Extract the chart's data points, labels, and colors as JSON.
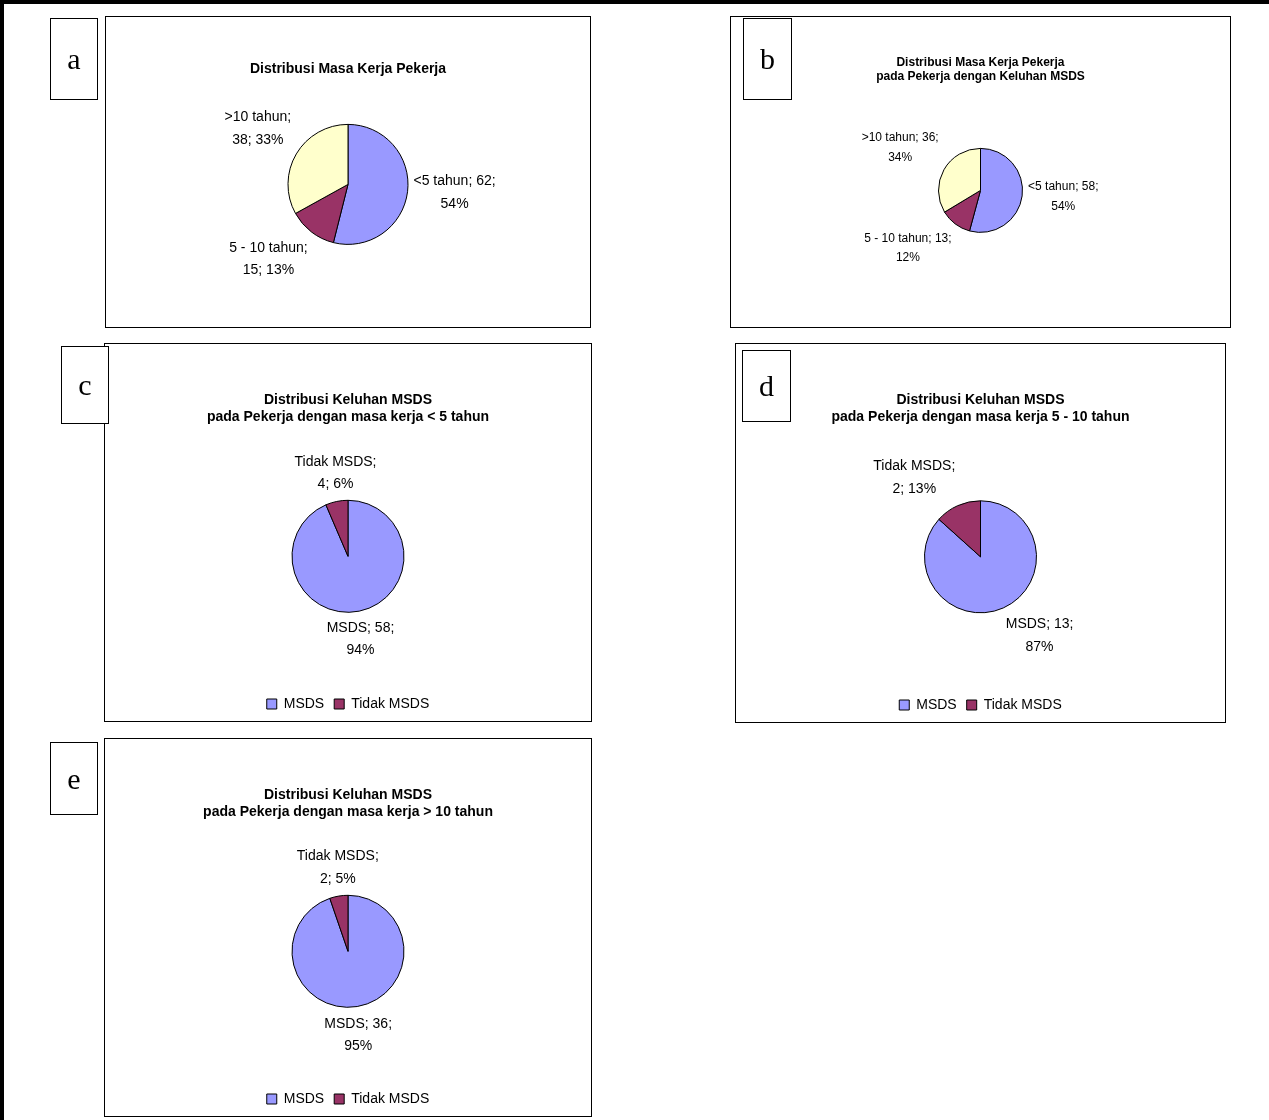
{
  "chart_data": [
    {
      "type": "pie",
      "title": "Distribusi Masa Kerja Pekerja",
      "annotations": [
        "a"
      ],
      "categories": [
        "<5 tahun",
        "5 - 10 tahun",
        ">10 tahun"
      ],
      "values": [
        62,
        15,
        38
      ],
      "colors": [
        "#9999ff",
        "#993366",
        "#ffffcc"
      ],
      "value_labels": [
        "; 62;\n54%",
        ";\n15; 13%",
        ";\n38; 33%"
      ]
    },
    {
      "type": "pie",
      "title": "Distribusi Masa Kerja Pekerja\npada Pekerja dengan Keluhan MSDS",
      "annotations": [
        "b"
      ],
      "categories": [
        "<5 tahun",
        "5 - 10 tahun",
        ">10 tahun"
      ],
      "values": [
        58,
        13,
        36
      ],
      "colors": [
        "#9999ff",
        "#993366",
        "#ffffcc"
      ],
      "value_labels": [
        "; 58;\n54%",
        "; 13;\n12%",
        "; 36;\n34%"
      ]
    },
    {
      "type": "pie",
      "title": "Distribusi Keluhan MSDS\npada Pekerja dengan masa kerja < 5 tahun",
      "annotations": [
        "c"
      ],
      "categories": [
        "MSDS",
        "Tidak MSDS"
      ],
      "values": [
        58,
        4
      ],
      "colors": [
        "#9999ff",
        "#993366"
      ],
      "value_labels": [
        "; 58;\n94%",
        ";\n4; 6%"
      ],
      "legend": "bottom"
    },
    {
      "type": "pie",
      "title": "Distribusi Keluhan MSDS\npada Pekerja dengan masa kerja 5 - 10 tahun",
      "annotations": [
        "d"
      ],
      "categories": [
        "MSDS",
        "Tidak MSDS"
      ],
      "values": [
        13,
        2
      ],
      "colors": [
        "#9999ff",
        "#993366"
      ],
      "value_labels": [
        "; 13;\n87%",
        ";\n2; 13%"
      ],
      "legend": "bottom"
    },
    {
      "type": "pie",
      "title": "Distribusi Keluhan MSDS\npada Pekerja dengan masa kerja > 10 tahun",
      "annotations": [
        "e"
      ],
      "categories": [
        "MSDS",
        "Tidak MSDS"
      ],
      "values": [
        36,
        2
      ],
      "colors": [
        "#9999ff",
        "#993366"
      ],
      "value_labels": [
        "; 36;\n95%",
        ";\n2; 5%"
      ],
      "legend": "bottom"
    }
  ]
}
